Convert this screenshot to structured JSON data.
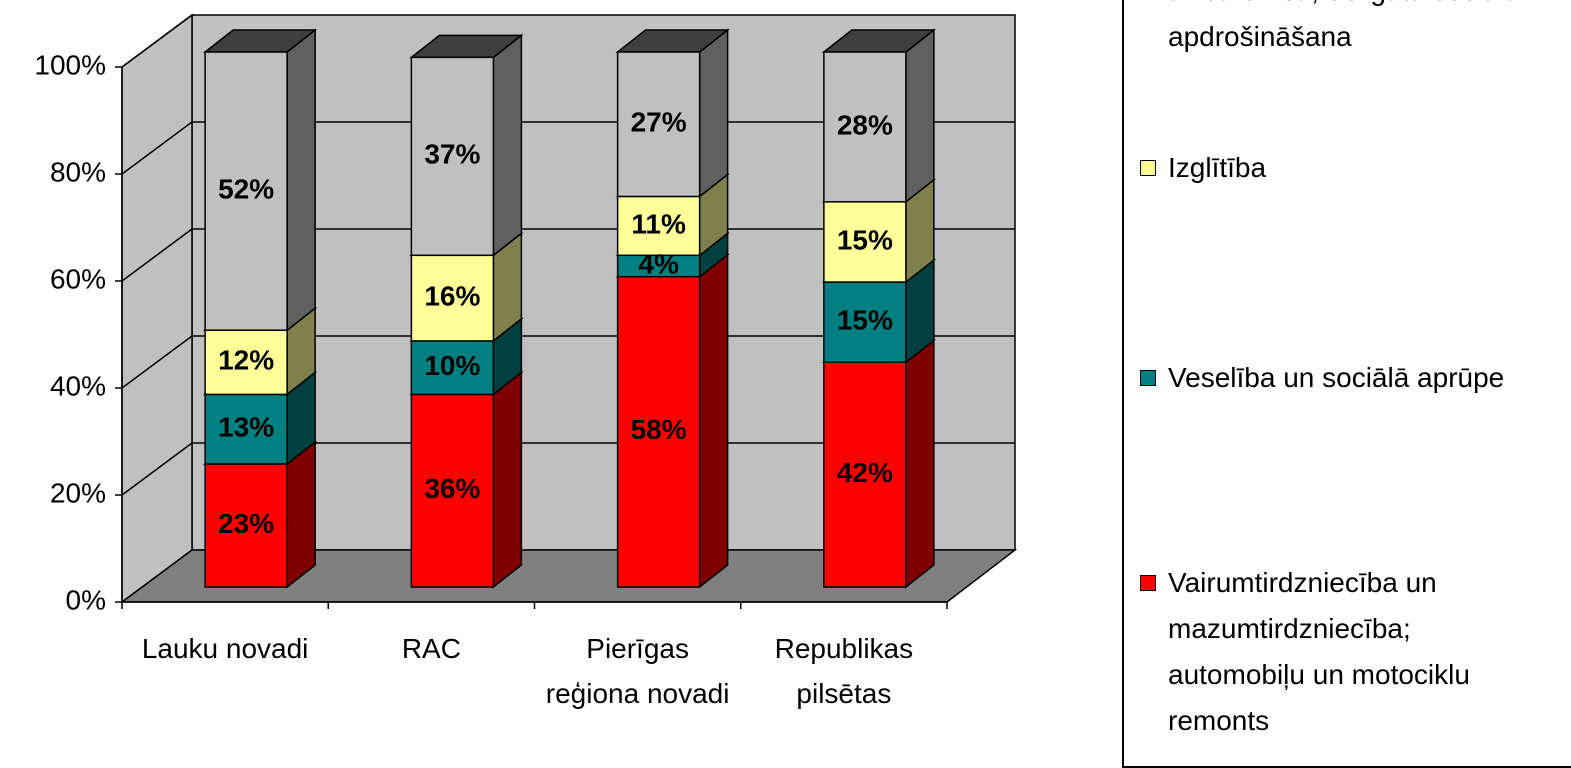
{
  "chart_data": {
    "type": "bar3d_stacked",
    "categories": [
      "Lauku novadi",
      "RAC",
      "Pierīgas reģiona novadi",
      "Republikas pilsētas"
    ],
    "ylim": [
      0,
      100
    ],
    "yticks": [
      {
        "value": 0,
        "label": "0%"
      },
      {
        "value": 20,
        "label": "20%"
      },
      {
        "value": 40,
        "label": "40%"
      },
      {
        "value": 60,
        "label": "60%"
      },
      {
        "value": 80,
        "label": "80%"
      },
      {
        "value": 100,
        "label": "100%"
      }
    ],
    "grid": true,
    "series": [
      {
        "name": "Vairumtirdzniecība un mazumtirdzniecība; automobiļu un motociklu remonts",
        "color": "#ff0000",
        "values": [
          23,
          36,
          58,
          42
        ],
        "value_labels": [
          "23%",
          "36%",
          "58%",
          "42%"
        ]
      },
      {
        "name": "Veselība un sociālā aprūpe",
        "color": "#008080",
        "values": [
          13,
          10,
          4,
          15
        ],
        "value_labels": [
          "13%",
          "10%",
          "4%",
          "15%"
        ]
      },
      {
        "name": "Izglītība",
        "color": "#ffff99",
        "values": [
          12,
          16,
          11,
          15
        ],
        "value_labels": [
          "12%",
          "16%",
          "11%",
          "15%"
        ]
      },
      {
        "name": "aizsardzība; obligātā sociālā apdrošināšana",
        "color": "#c0c0c0",
        "values": [
          52,
          37,
          27,
          28
        ],
        "value_labels": [
          "52%",
          "37%",
          "27%",
          "28%"
        ]
      }
    ]
  }
}
